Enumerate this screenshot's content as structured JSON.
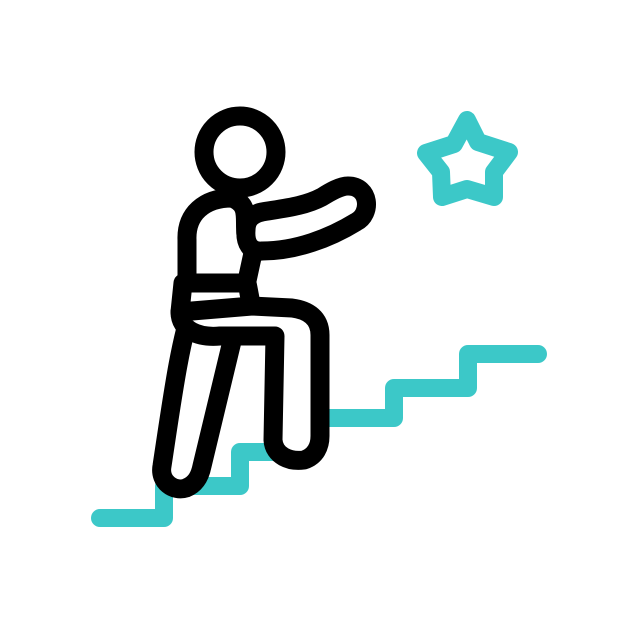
{
  "illustration": {
    "icon_name": "person-climbing-stairs-to-star-icon",
    "parts": {
      "figure": "person-icon",
      "stairs": "stairs-icon",
      "goal": "star-icon"
    },
    "colors": {
      "background": "#ffffff",
      "figure_stroke": "#000000",
      "figure_fill": "#ffffff",
      "accent": "#3CC8C8"
    }
  }
}
